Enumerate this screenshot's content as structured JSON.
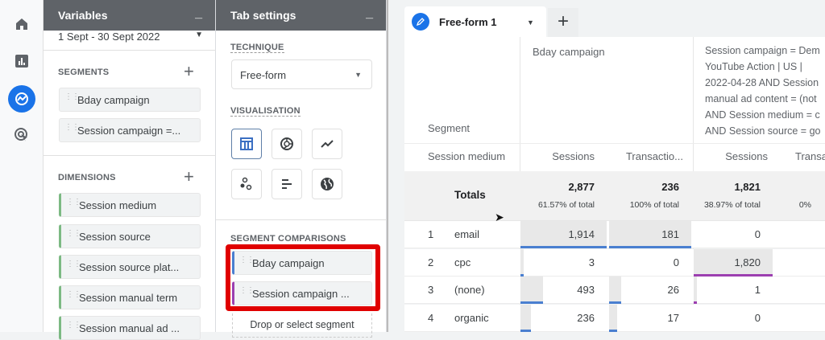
{
  "rail": {
    "items": [
      {
        "icon": "home-icon"
      },
      {
        "icon": "reports-icon"
      },
      {
        "icon": "explore-icon",
        "active": true
      },
      {
        "icon": "advertising-icon"
      }
    ]
  },
  "variables": {
    "title": "Variables",
    "minimize": "_",
    "date_range": "1 Sept - 30 Sept 2022",
    "segments_label": "SEGMENTS",
    "segments": [
      "Bday campaign",
      "Session campaign =..."
    ],
    "dimensions_label": "DIMENSIONS",
    "dimensions": [
      "Session medium",
      "Session source",
      "Session source plat...",
      "Session manual term",
      "Session manual ad ..."
    ],
    "add": "+"
  },
  "tab_settings": {
    "title": "Tab settings",
    "minimize": "_",
    "technique_label": "TECHNIQUE",
    "technique_value": "Free-form",
    "visualisation_label": "VISUALISATION",
    "visualisations": [
      "table-icon",
      "donut-chart-icon",
      "line-chart-icon",
      "scatter-plot-icon",
      "bar-chart-icon",
      "globe-icon"
    ],
    "segment_comparisons_label": "SEGMENT COMPARISONS",
    "segment_comparisons": [
      {
        "label": "Bday campaign",
        "color": "#4a7fd0"
      },
      {
        "label": "Session campaign ...",
        "color": "#9c3fb0"
      }
    ],
    "drop_placeholder": "Drop or select segment",
    "highlight_color": "#e00000"
  },
  "tabs": {
    "active": "Free-form 1",
    "add": "+"
  },
  "table": {
    "segment_header": "Segment",
    "dimension_header": "Session medium",
    "segments": [
      {
        "name": "Bday campaign",
        "color": "#4a7fd0"
      },
      {
        "name": "Session campaign = Dem\nYouTube Action | US |\n2022-04-28 AND Session\nmanual ad content = (not\nAND Session medium = c\nAND Session source = go",
        "color": "#9c3fb0"
      }
    ],
    "metrics": [
      "Sessions",
      "Transactio...",
      "Sessions",
      "Transa"
    ],
    "totals_label": "Totals",
    "totals": [
      {
        "value": "2,877",
        "pct": "61.57% of total"
      },
      {
        "value": "236",
        "pct": "100% of total"
      },
      {
        "value": "1,821",
        "pct": "38.97% of total"
      },
      {
        "value": "",
        "pct": "0%"
      }
    ],
    "rows": [
      {
        "rank": "1",
        "medium": "email",
        "values": [
          "1,914",
          "181",
          "0"
        ]
      },
      {
        "rank": "2",
        "medium": "cpc",
        "values": [
          "3",
          "0",
          "1,820"
        ]
      },
      {
        "rank": "3",
        "medium": "(none)",
        "values": [
          "493",
          "26",
          "1"
        ]
      },
      {
        "rank": "4",
        "medium": "organic",
        "values": [
          "236",
          "17",
          "0"
        ]
      }
    ]
  }
}
